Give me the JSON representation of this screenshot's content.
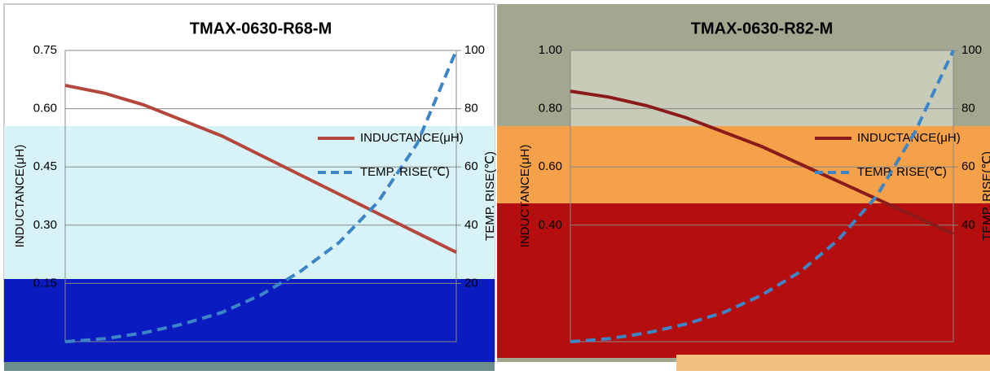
{
  "chart_data": [
    {
      "type": "line",
      "title": "TMAX-0630-R68-M",
      "y_label": "INDUCTANCE(μH)",
      "y2_label": "TEMP. RISE(℃)",
      "ylim": [
        0,
        0.75
      ],
      "yticks": [
        0.15,
        {
          "value": 0.3,
          "label": "0.30"
        },
        0.45,
        {
          "value": 0.6,
          "label": "0.60"
        },
        0.75
      ],
      "y2lim": [
        0,
        100
      ],
      "y2ticks": [
        20,
        40,
        60,
        80,
        100
      ],
      "grid": true,
      "legend": "right",
      "series": [
        {
          "name": "INDUCTANCE(μH)",
          "color": "#b5463c",
          "values": [
            0.66,
            0.64,
            0.61,
            0.57,
            0.53,
            0.48,
            0.43,
            0.38,
            0.33,
            0.28,
            0.23
          ]
        },
        {
          "name": "TEMP. RISE(℃)",
          "color": "#3d85c6",
          "axis": "y2",
          "dashed": true,
          "values": [
            0,
            1,
            3,
            6,
            10,
            16,
            24,
            34,
            48,
            68,
            100
          ]
        }
      ]
    },
    {
      "type": "line",
      "title": "TMAX-0630-R82-M",
      "y_label": "INDUCTANCE(μH)",
      "y2_label": "TEMP. RISE(℃)",
      "ylim": [
        0,
        1
      ],
      "yticks": [
        {
          "value": 0.4,
          "label": "0.40"
        },
        {
          "value": 0.6,
          "label": "0.60"
        },
        {
          "value": 0.8,
          "label": "0.80"
        },
        {
          "value": 1,
          "label": "1.00"
        }
      ],
      "y2lim": [
        0,
        100
      ],
      "y2ticks": [
        40,
        60,
        80,
        100
      ],
      "grid": true,
      "legend": "right",
      "series": [
        {
          "name": "INDUCTANCE(μH)",
          "color": "#8b1a1a",
          "values": [
            0.86,
            0.84,
            0.81,
            0.77,
            0.72,
            0.67,
            0.61,
            0.55,
            0.49,
            0.43,
            0.37
          ]
        },
        {
          "name": "TEMP. RISE(℃)",
          "color": "#3d85c6",
          "axis": "y2",
          "dashed": true,
          "values": [
            0,
            1,
            3,
            6,
            10,
            16,
            24,
            35,
            50,
            72,
            100
          ]
        }
      ]
    }
  ]
}
